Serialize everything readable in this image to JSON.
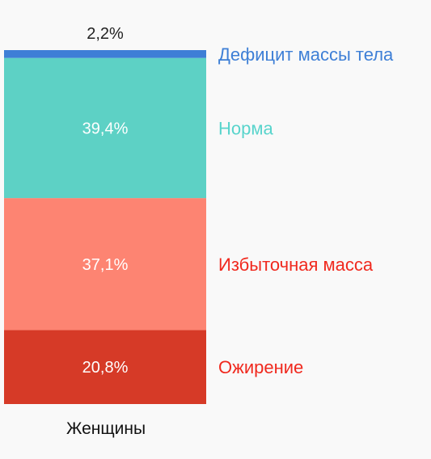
{
  "chart_data": {
    "type": "bar",
    "stacked": true,
    "categories": [
      "Женщины"
    ],
    "series": [
      {
        "name": "Ожирение",
        "values": [
          20.8
        ],
        "label": "20,8%",
        "color": "#d63a27",
        "legend_color": "#f0291e"
      },
      {
        "name": "Избыточная масса",
        "values": [
          37.1
        ],
        "label": "37,1%",
        "color": "#fd8472",
        "legend_color": "#f0291e"
      },
      {
        "name": "Норма",
        "values": [
          39.4
        ],
        "label": "39,4%",
        "color": "#5dd1c5",
        "legend_color": "#58d4cc"
      },
      {
        "name": "Дефицит массы тела",
        "values": [
          2.2
        ],
        "label": "2,2%",
        "color": "#3e7fd6",
        "legend_color": "#3e7fd6"
      }
    ],
    "ylim": [
      0,
      100
    ],
    "grid": false,
    "legend": "right"
  }
}
